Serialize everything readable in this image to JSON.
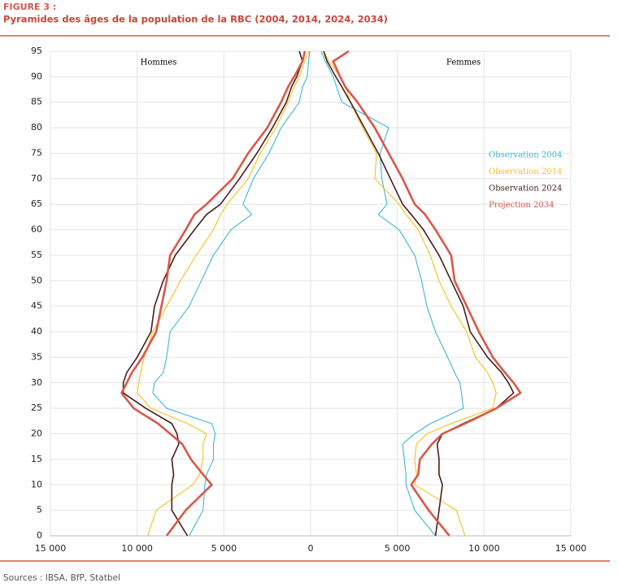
{
  "chart_data": {
    "type": "pyramid",
    "figure_label": "FIGURE 3 :",
    "title": "Pyramides des âges de la population de la RBC (2004, 2014, 2024, 2034)",
    "source": "Sources : IBSA, BfP, Statbel",
    "left_label": "Hommes",
    "right_label": "Femmes",
    "ages": [
      0,
      5,
      10,
      12,
      15,
      18,
      20,
      22,
      25,
      28,
      30,
      32,
      35,
      40,
      45,
      50,
      55,
      60,
      63,
      65,
      70,
      75,
      80,
      85,
      88,
      90,
      93,
      95
    ],
    "ylim": [
      0,
      95
    ],
    "yticks": [
      0,
      5,
      10,
      15,
      20,
      25,
      30,
      35,
      40,
      45,
      50,
      55,
      60,
      65,
      70,
      75,
      80,
      85,
      90,
      95
    ],
    "xlim": [
      0,
      15000
    ],
    "xticks": [
      0,
      {
        "value": 5000,
        "label": "5 000"
      },
      {
        "value": 10000,
        "label": "10 000"
      },
      {
        "value": 15000,
        "label": "15 000"
      }
    ],
    "grid": true,
    "series": [
      {
        "name": "Observation 2004",
        "color": "#3bb8d8",
        "men": [
          7000,
          6200,
          6100,
          6000,
          5600,
          5600,
          5500,
          5700,
          8300,
          9100,
          9000,
          8500,
          8300,
          8100,
          7000,
          6300,
          5600,
          4600,
          3400,
          3900,
          3300,
          2400,
          1700,
          650,
          470,
          190,
          120,
          50
        ],
        "women": [
          7200,
          6000,
          5500,
          5500,
          5400,
          5300,
          6000,
          6900,
          8800,
          8700,
          8600,
          8300,
          7900,
          7200,
          6700,
          6400,
          6000,
          5100,
          3900,
          4400,
          4100,
          4000,
          4500,
          1800,
          1500,
          1300,
          850,
          600
        ]
      },
      {
        "name": "Observation 2014",
        "color": "#f2c21b",
        "men": [
          9400,
          8900,
          6800,
          6400,
          6200,
          6200,
          6000,
          7100,
          9200,
          10000,
          9900,
          9800,
          9600,
          9100,
          8300,
          7500,
          6600,
          5600,
          5200,
          4800,
          3600,
          2900,
          2000,
          1300,
          950,
          650,
          350,
          100
        ],
        "women": [
          8900,
          8400,
          6000,
          6100,
          6000,
          6100,
          6700,
          8100,
          10500,
          10700,
          10500,
          10200,
          9500,
          9000,
          8100,
          7400,
          6900,
          6200,
          5500,
          5100,
          3700,
          3800,
          3000,
          2300,
          2000,
          1700,
          1050,
          750
        ]
      },
      {
        "name": "Observation 2024",
        "color": "#4a1c1c",
        "men": [
          7100,
          8000,
          8000,
          7900,
          8000,
          7600,
          7700,
          8000,
          9500,
          10800,
          10800,
          10600,
          10000,
          9200,
          9000,
          8500,
          7800,
          6700,
          6000,
          5200,
          4100,
          3100,
          2200,
          1400,
          1100,
          800,
          470,
          650
        ],
        "women": [
          7200,
          7400,
          7600,
          7400,
          7400,
          7300,
          7600,
          8800,
          10700,
          11700,
          11400,
          11000,
          10200,
          9200,
          8800,
          8100,
          7400,
          6500,
          5800,
          5300,
          4600,
          3900,
          3100,
          2300,
          1800,
          1450,
          950,
          750
        ]
      },
      {
        "name": "Projection 2034",
        "color": "#d9574a",
        "men": [
          8300,
          7200,
          5700,
          6200,
          6900,
          7400,
          8100,
          8800,
          10200,
          10900,
          10600,
          10300,
          9700,
          8900,
          8600,
          8300,
          8100,
          7200,
          6700,
          6000,
          4500,
          3600,
          2500,
          1700,
          1300,
          950,
          470,
          330
        ],
        "women": [
          8000,
          6800,
          5800,
          6200,
          6300,
          7000,
          7600,
          8900,
          10700,
          12100,
          11700,
          11200,
          10500,
          9700,
          9000,
          8300,
          8100,
          7200,
          6600,
          6000,
          5300,
          4500,
          3700,
          2700,
          2000,
          1700,
          1300,
          2200
        ]
      }
    ]
  }
}
